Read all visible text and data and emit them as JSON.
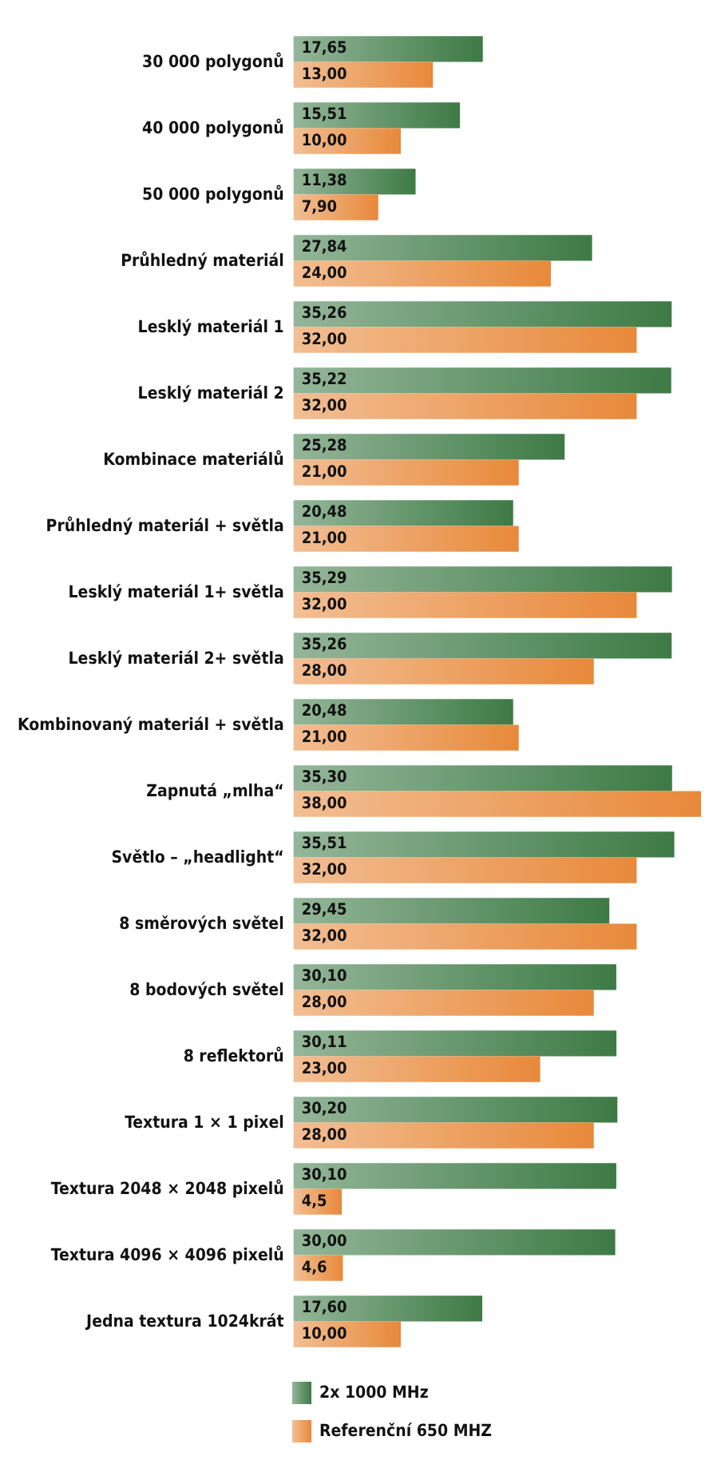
{
  "chart_data": {
    "type": "bar",
    "orientation": "horizontal",
    "categories": [
      "30 000 polygonů",
      "40 000 polygonů",
      "50 000 polygonů",
      "Průhledný materiál",
      "Lesklý materiál 1",
      "Lesklý materiál 2",
      "Kombinace materiálů",
      "Průhledný materiál + světla",
      "Lesklý materiál 1+ světla",
      "Lesklý materiál 2+ světla",
      "Kombinovaný materiál + světla",
      "Zapnutá „mlha“",
      "Světlo – „headlight“",
      "8 směrových světel",
      "8 bodových světel",
      "8 reflektorů",
      "Textura 1 × 1 pixel",
      "Textura 2048 × 2048 pixelů",
      "Textura 4096 × 4096 pixelů",
      "Jedna textura 1024krát"
    ],
    "series": [
      {
        "name": "2x 1000 MHz",
        "color": "#3d7a45",
        "values": [
          17.65,
          15.51,
          11.38,
          27.84,
          35.26,
          35.22,
          25.28,
          20.48,
          35.29,
          35.26,
          20.48,
          35.3,
          35.51,
          29.45,
          30.1,
          30.11,
          30.2,
          30.1,
          30.0,
          17.6
        ],
        "value_labels": [
          "17,65",
          "15,51",
          "11,38",
          "27,84",
          "35,26",
          "35,22",
          "25,28",
          "20,48",
          "35,29",
          "35,26",
          "20,48",
          "35,30",
          "35,51",
          "29,45",
          "30,10",
          "30,11",
          "30,20",
          "30,10",
          "30,00",
          "17,60"
        ]
      },
      {
        "name": "Referenční 650 MHZ",
        "color": "#e8893a",
        "values": [
          13.0,
          10.0,
          7.9,
          24.0,
          32.0,
          32.0,
          21.0,
          21.0,
          32.0,
          28.0,
          21.0,
          38.0,
          32.0,
          32.0,
          28.0,
          23.0,
          28.0,
          4.5,
          4.6,
          10.0
        ],
        "value_labels": [
          "13,00",
          "10,00",
          "7,90",
          "24,00",
          "32,00",
          "32,00",
          "21,00",
          "21,00",
          "32,00",
          "28,00",
          "21,00",
          "38,00",
          "32,00",
          "32,00",
          "28,00",
          "23,00",
          "28,00",
          "4,5",
          "4,6",
          "10,00"
        ]
      }
    ],
    "legend": "bottom",
    "tick_labels": "y"
  }
}
